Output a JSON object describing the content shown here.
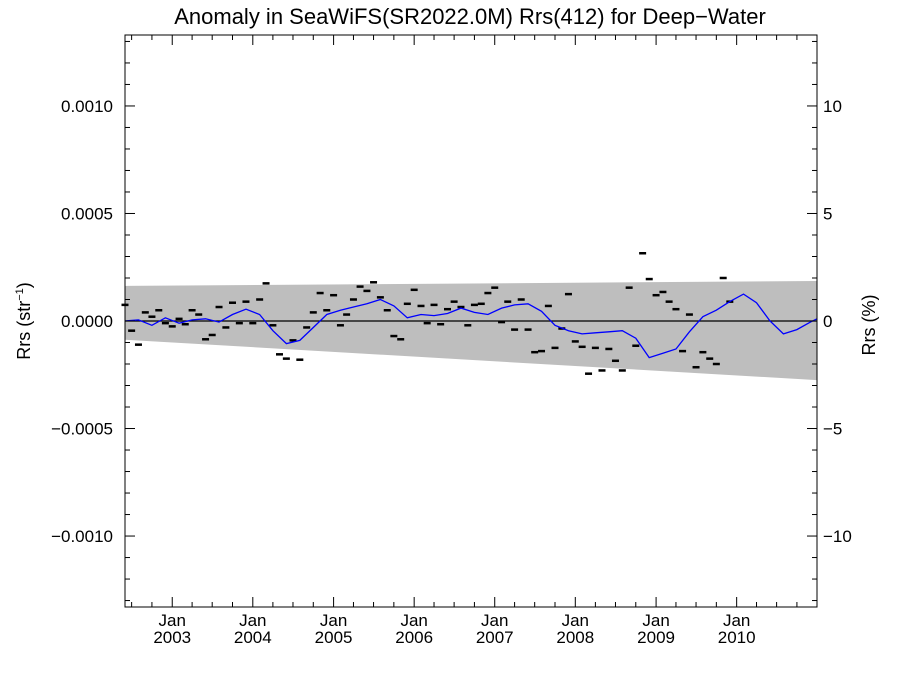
{
  "chart_data": {
    "type": "scatter",
    "title": "Anomaly in SeaWiFS(SR2022.0M) Rrs(412) for Deep−Water",
    "ylabel_left": "Rrs (str",
    "ylabel_left_sup": "−1",
    "ylabel_left_close": ")",
    "ylabel_right": "Rrs (%)",
    "ylim": [
      -0.00133,
      0.00133
    ],
    "right_ylim": [
      -13.3,
      13.3
    ],
    "xlim": [
      "2002-06-01",
      "2010-12-31"
    ],
    "grid": false,
    "left_ticks": [
      {
        "value": 0.001,
        "label": "0.0010"
      },
      {
        "value": 0.0005,
        "label": "0.0005"
      },
      {
        "value": 0.0,
        "label": "0.0000"
      },
      {
        "value": -0.0005,
        "label": "−0.0005"
      },
      {
        "value": -0.001,
        "label": "−0.0010"
      }
    ],
    "right_ticks": [
      {
        "value": 10,
        "label": "10"
      },
      {
        "value": 5,
        "label": "5"
      },
      {
        "value": 0,
        "label": "0"
      },
      {
        "value": -5,
        "label": "−5"
      },
      {
        "value": -10,
        "label": "−10"
      }
    ],
    "x_ticks": [
      {
        "date": "2003-01-01",
        "month": "Jan",
        "year": "2003"
      },
      {
        "date": "2004-01-01",
        "month": "Jan",
        "year": "2004"
      },
      {
        "date": "2005-01-01",
        "month": "Jan",
        "year": "2005"
      },
      {
        "date": "2006-01-01",
        "month": "Jan",
        "year": "2006"
      },
      {
        "date": "2007-01-01",
        "month": "Jan",
        "year": "2007"
      },
      {
        "date": "2008-01-01",
        "month": "Jan",
        "year": "2008"
      },
      {
        "date": "2009-01-01",
        "month": "Jan",
        "year": "2009"
      },
      {
        "date": "2010-01-01",
        "month": "Jan",
        "year": "2010"
      }
    ],
    "uncertainty_band": {
      "color": "#bebebe",
      "start": {
        "date": "2002-06-01",
        "upper": 0.000163,
        "lower": -8.7e-05
      },
      "end": {
        "date": "2010-12-31",
        "upper": 0.000186,
        "lower": -0.000275
      }
    },
    "monthly_anomalies": {
      "name": "",
      "marker": "dash",
      "color": "#000000",
      "points": [
        [
          "2002-06-01",
          7.5e-05
        ],
        [
          "2002-07-01",
          -4.5e-05
        ],
        [
          "2002-08-01",
          -0.00011
        ],
        [
          "2002-09-01",
          4e-05
        ],
        [
          "2002-10-01",
          2e-05
        ],
        [
          "2002-11-01",
          5e-05
        ],
        [
          "2002-12-01",
          -1e-05
        ],
        [
          "2003-01-01",
          -2.5e-05
        ],
        [
          "2003-02-01",
          1e-05
        ],
        [
          "2003-03-01",
          -1.5e-05
        ],
        [
          "2003-04-01",
          5e-05
        ],
        [
          "2003-05-01",
          3e-05
        ],
        [
          "2003-06-01",
          -8.5e-05
        ],
        [
          "2003-07-01",
          -6.5e-05
        ],
        [
          "2003-08-01",
          6.5e-05
        ],
        [
          "2003-09-01",
          -3e-05
        ],
        [
          "2003-10-01",
          8.5e-05
        ],
        [
          "2003-11-01",
          -1e-05
        ],
        [
          "2003-12-01",
          9e-05
        ],
        [
          "2004-01-01",
          -1e-05
        ],
        [
          "2004-02-01",
          0.0001
        ],
        [
          "2004-03-01",
          0.000175
        ],
        [
          "2004-04-01",
          -2e-05
        ],
        [
          "2004-05-01",
          -0.000155
        ],
        [
          "2004-06-01",
          -0.000175
        ],
        [
          "2004-07-01",
          -9e-05
        ],
        [
          "2004-08-01",
          -0.00018
        ],
        [
          "2004-09-01",
          -3e-05
        ],
        [
          "2004-10-01",
          4e-05
        ],
        [
          "2004-11-01",
          0.00013
        ],
        [
          "2004-12-01",
          5e-05
        ],
        [
          "2005-01-01",
          0.00012
        ],
        [
          "2005-02-01",
          -2e-05
        ],
        [
          "2005-03-01",
          3e-05
        ],
        [
          "2005-04-01",
          0.0001
        ],
        [
          "2005-05-01",
          0.00016
        ],
        [
          "2005-06-01",
          0.00014
        ],
        [
          "2005-07-01",
          0.00018
        ],
        [
          "2005-08-01",
          0.00011
        ],
        [
          "2005-09-01",
          5e-05
        ],
        [
          "2005-10-01",
          -7e-05
        ],
        [
          "2005-11-01",
          -8.5e-05
        ],
        [
          "2005-12-01",
          8e-05
        ],
        [
          "2006-01-01",
          0.000145
        ],
        [
          "2006-02-01",
          7e-05
        ],
        [
          "2006-03-01",
          -1e-05
        ],
        [
          "2006-04-01",
          7.5e-05
        ],
        [
          "2006-05-01",
          -1.5e-05
        ],
        [
          "2006-06-01",
          5.5e-05
        ],
        [
          "2006-07-01",
          9e-05
        ],
        [
          "2006-08-01",
          6.5e-05
        ],
        [
          "2006-09-01",
          -2e-05
        ],
        [
          "2006-10-01",
          7.5e-05
        ],
        [
          "2006-11-01",
          8e-05
        ],
        [
          "2006-12-01",
          0.00013
        ],
        [
          "2007-01-01",
          0.000155
        ],
        [
          "2007-02-01",
          -5e-06
        ],
        [
          "2007-03-01",
          9e-05
        ],
        [
          "2007-04-01",
          -4e-05
        ],
        [
          "2007-05-01",
          0.0001
        ],
        [
          "2007-06-01",
          -4e-05
        ],
        [
          "2007-07-01",
          -0.000145
        ],
        [
          "2007-08-01",
          -0.00014
        ],
        [
          "2007-09-01",
          7e-05
        ],
        [
          "2007-10-01",
          -0.000125
        ],
        [
          "2007-11-01",
          -3.5e-05
        ],
        [
          "2007-12-01",
          0.000125
        ],
        [
          "2008-01-01",
          -9.5e-05
        ],
        [
          "2008-02-01",
          -0.00012
        ],
        [
          "2008-03-01",
          -0.000245
        ],
        [
          "2008-04-01",
          -0.000125
        ],
        [
          "2008-05-01",
          -0.00023
        ],
        [
          "2008-06-01",
          -0.00013
        ],
        [
          "2008-07-01",
          -0.000185
        ],
        [
          "2008-08-01",
          -0.00023
        ],
        [
          "2008-09-01",
          0.000155
        ],
        [
          "2008-10-01",
          -0.000115
        ],
        [
          "2008-11-01",
          0.000315
        ],
        [
          "2008-12-01",
          0.000195
        ],
        [
          "2009-01-01",
          0.00012
        ],
        [
          "2009-02-01",
          0.000135
        ],
        [
          "2009-03-01",
          9e-05
        ],
        [
          "2009-04-01",
          5.5e-05
        ],
        [
          "2009-05-01",
          -0.00014
        ],
        [
          "2009-06-01",
          3e-05
        ],
        [
          "2009-07-01",
          -0.000215
        ],
        [
          "2009-08-01",
          -0.000145
        ],
        [
          "2009-09-01",
          -0.000175
        ],
        [
          "2009-10-01",
          -0.0002
        ],
        [
          "2009-11-01",
          0.0002
        ],
        [
          "2009-12-01",
          9e-05
        ]
      ]
    },
    "smoothed_series": {
      "name": "",
      "color": "#0000ff",
      "points": [
        [
          "2002-06-01",
          0.0
        ],
        [
          "2002-08-01",
          5e-06
        ],
        [
          "2002-10-01",
          -2e-05
        ],
        [
          "2002-12-01",
          1.5e-05
        ],
        [
          "2003-02-01",
          -1e-05
        ],
        [
          "2003-04-01",
          5e-06
        ],
        [
          "2003-06-01",
          1e-05
        ],
        [
          "2003-08-01",
          -5e-06
        ],
        [
          "2003-10-01",
          3e-05
        ],
        [
          "2003-12-01",
          5.5e-05
        ],
        [
          "2004-02-01",
          3e-05
        ],
        [
          "2004-04-01",
          -4.5e-05
        ],
        [
          "2004-06-01",
          -0.000105
        ],
        [
          "2004-08-01",
          -9e-05
        ],
        [
          "2004-10-01",
          -3e-05
        ],
        [
          "2004-12-01",
          3e-05
        ],
        [
          "2005-02-01",
          5e-05
        ],
        [
          "2005-04-01",
          6.5e-05
        ],
        [
          "2005-06-01",
          8e-05
        ],
        [
          "2005-08-01",
          0.0001
        ],
        [
          "2005-10-01",
          7e-05
        ],
        [
          "2005-12-01",
          1.5e-05
        ],
        [
          "2006-02-01",
          3e-05
        ],
        [
          "2006-04-01",
          2.5e-05
        ],
        [
          "2006-06-01",
          3.5e-05
        ],
        [
          "2006-08-01",
          6e-05
        ],
        [
          "2006-10-01",
          4e-05
        ],
        [
          "2006-12-01",
          3e-05
        ],
        [
          "2007-02-01",
          6e-05
        ],
        [
          "2007-04-01",
          7.5e-05
        ],
        [
          "2007-06-01",
          8e-05
        ],
        [
          "2007-08-01",
          4.5e-05
        ],
        [
          "2007-10-01",
          -2e-05
        ],
        [
          "2007-12-01",
          -4.5e-05
        ],
        [
          "2008-02-01",
          -6e-05
        ],
        [
          "2008-04-01",
          -5.5e-05
        ],
        [
          "2008-06-01",
          -5e-05
        ],
        [
          "2008-08-01",
          -4.5e-05
        ],
        [
          "2008-10-01",
          -8e-05
        ],
        [
          "2008-12-01",
          -0.00017
        ],
        [
          "2009-02-01",
          -0.00015
        ],
        [
          "2009-04-01",
          -0.00013
        ],
        [
          "2009-06-01",
          -5e-05
        ],
        [
          "2009-08-01",
          2e-05
        ],
        [
          "2009-10-01",
          5e-05
        ],
        [
          "2009-12-01",
          9e-05
        ],
        [
          "2010-02-01",
          0.000125
        ],
        [
          "2010-04-01",
          8.5e-05
        ],
        [
          "2010-06-01",
          0.0
        ],
        [
          "2010-08-01",
          -6e-05
        ],
        [
          "2010-10-01",
          -4e-05
        ],
        [
          "2010-12-01",
          -5e-06
        ],
        [
          "2010-12-31",
          1e-05
        ]
      ]
    },
    "zero_line": {
      "value": 0.0,
      "color": "#000000"
    }
  }
}
